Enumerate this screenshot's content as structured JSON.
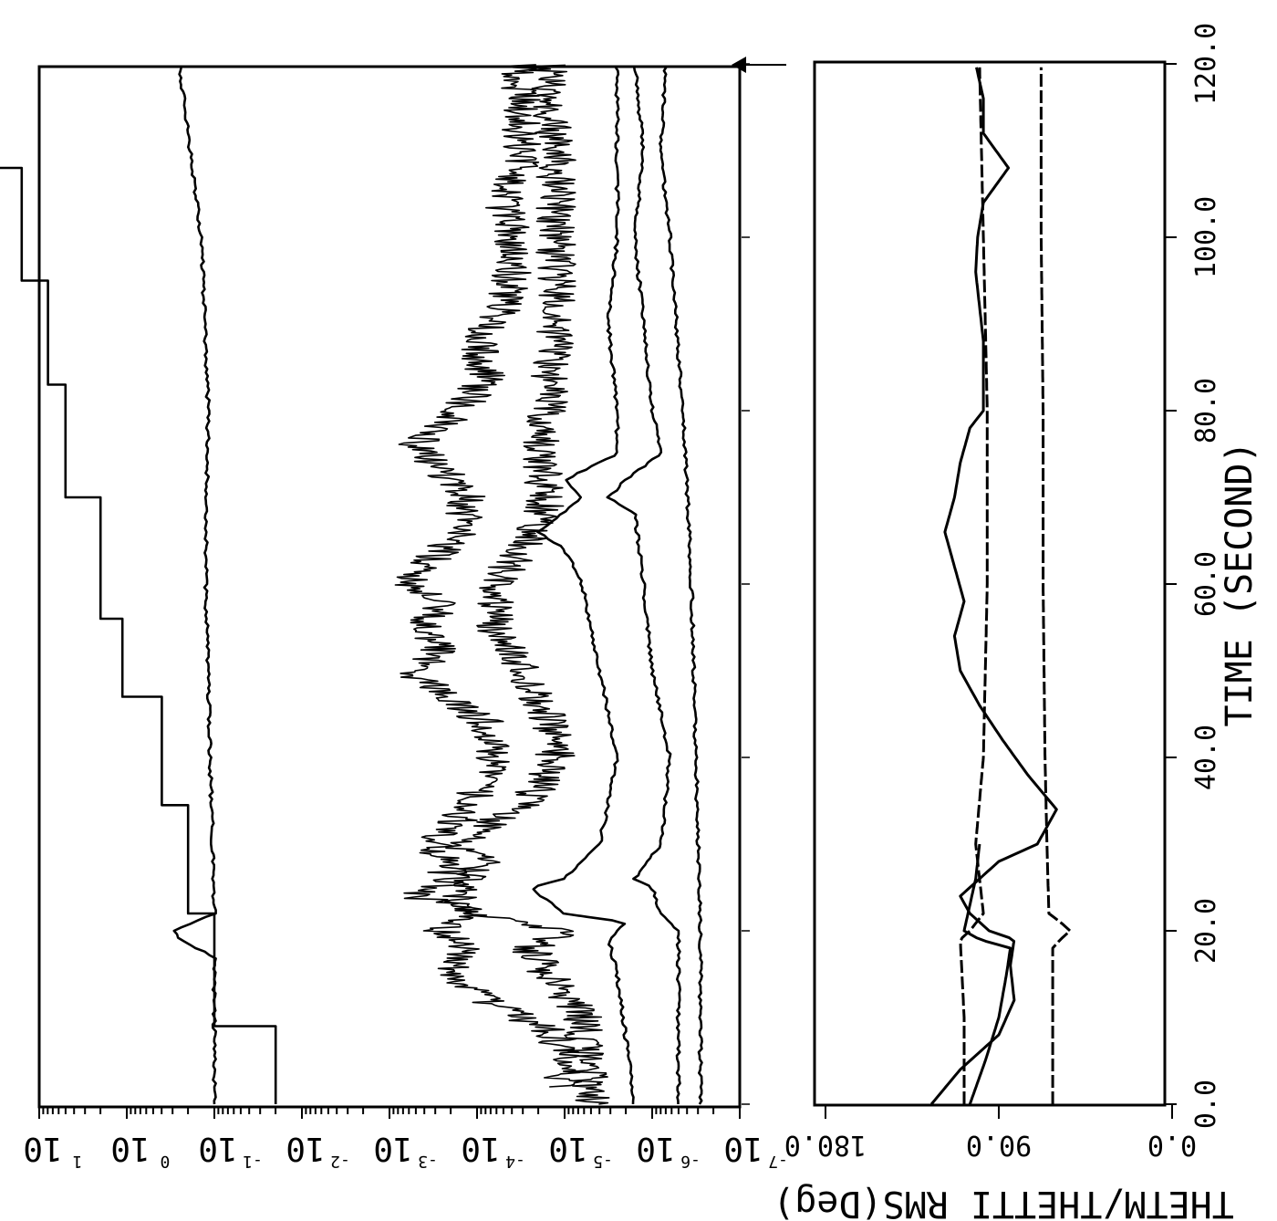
{
  "chart_data": {
    "type": "line",
    "time_axis": {
      "label": "TIME (SECOND)",
      "ticks": [
        "0.0",
        "20.0",
        "40.0",
        "60.0",
        "80.0",
        "100.0",
        "120.0"
      ],
      "range": [
        0,
        120
      ]
    },
    "left_panel": {
      "value_axis": {
        "scale": "log",
        "tick_labels": [
          {
            "base": "10",
            "exp": "1"
          },
          {
            "base": "10",
            "exp": "0"
          },
          {
            "base": "10",
            "exp": "-1"
          },
          {
            "base": "10",
            "exp": "-2"
          },
          {
            "base": "10",
            "exp": "-3"
          },
          {
            "base": "10",
            "exp": "-4"
          },
          {
            "base": "10",
            "exp": "-5"
          },
          {
            "base": "10",
            "exp": "-6"
          },
          {
            "base": "10",
            "exp": "-7"
          }
        ],
        "range_log10": [
          -7,
          1
        ]
      },
      "series": [
        {
          "style": "step",
          "x": [
            0,
            9,
            9,
            22,
            22,
            34.5,
            34.5,
            47,
            47,
            56,
            56,
            70,
            70,
            83,
            83,
            95,
            95,
            108,
            108,
            120
          ],
          "y_log10": [
            -1.7,
            -1.7,
            -1.0,
            -1.0,
            -0.7,
            -0.7,
            -0.4,
            -0.4,
            0.05,
            0.05,
            0.3,
            0.3,
            0.7,
            0.7,
            0.9,
            0.9,
            1.2,
            1.2,
            1.5,
            1.5
          ]
        },
        {
          "style": "line",
          "x": [
            0,
            10,
            17,
            19,
            20,
            21,
            22,
            30,
            40,
            60,
            80,
            100,
            120
          ],
          "y_log10": [
            -1.0,
            -1.0,
            -1.0,
            -0.6,
            -0.55,
            -0.75,
            -1.0,
            -0.98,
            -0.95,
            -0.9,
            -0.93,
            -0.85,
            -0.6
          ]
        },
        {
          "style": "noisy",
          "x": [
            2,
            8,
            12,
            15,
            18,
            20,
            22,
            24,
            26,
            28,
            30,
            33,
            36,
            40,
            44,
            48,
            50,
            52,
            55,
            58,
            60,
            63,
            66,
            70,
            73,
            76,
            80,
            84,
            88,
            92,
            96,
            100,
            104,
            108,
            112,
            116,
            120
          ],
          "y_log10": [
            -5.0,
            -4.9,
            -4.1,
            -3.7,
            -3.8,
            -3.6,
            -4.0,
            -3.3,
            -3.7,
            -3.6,
            -3.5,
            -3.8,
            -4.0,
            -4.2,
            -4.1,
            -3.5,
            -3.2,
            -3.6,
            -3.4,
            -3.6,
            -3.2,
            -3.5,
            -3.8,
            -3.9,
            -3.6,
            -3.3,
            -3.8,
            -4.1,
            -4.0,
            -4.3,
            -4.4,
            -4.4,
            -4.3,
            -4.5,
            -4.5,
            -4.5,
            -4.5
          ]
        },
        {
          "style": "noisy",
          "x": [
            0,
            10,
            15,
            18,
            20,
            22,
            25,
            28,
            30,
            35,
            40,
            45,
            50,
            55,
            60,
            65,
            70,
            75,
            80,
            90,
            100,
            110,
            120
          ],
          "y_log10": [
            -5.3,
            -5.2,
            -4.8,
            -4.6,
            -5.0,
            -3.9,
            -3.8,
            -4.1,
            -3.8,
            -4.6,
            -4.9,
            -4.8,
            -4.5,
            -4.2,
            -4.2,
            -4.6,
            -4.8,
            -4.7,
            -4.8,
            -4.9,
            -4.9,
            -4.9,
            -4.8
          ]
        },
        {
          "style": "line",
          "x": [
            0,
            15,
            19,
            21,
            22,
            25,
            26,
            30,
            40,
            50,
            55,
            60,
            64,
            66,
            70,
            72,
            75,
            80,
            90,
            100,
            110,
            120
          ],
          "y_log10": [
            -5.8,
            -5.6,
            -5.5,
            -5.7,
            -5.0,
            -4.6,
            -5.0,
            -5.4,
            -5.6,
            -5.4,
            -5.3,
            -5.2,
            -5.0,
            -4.7,
            -5.2,
            -5.0,
            -5.6,
            -5.6,
            -5.5,
            -5.6,
            -5.6,
            -5.6
          ]
        },
        {
          "style": "line",
          "x": [
            0,
            20,
            22,
            25,
            26,
            30,
            40,
            50,
            60,
            68,
            70,
            72,
            75,
            80,
            90,
            100,
            110,
            120
          ],
          "y_log10": [
            -6.3,
            -6.3,
            -6.1,
            -6.0,
            -5.8,
            -6.1,
            -6.2,
            -6.0,
            -5.9,
            -5.8,
            -5.5,
            -5.7,
            -6.1,
            -6.0,
            -5.9,
            -5.8,
            -5.9,
            -5.8
          ]
        },
        {
          "style": "line",
          "x": [
            0,
            20,
            40,
            60,
            80,
            100,
            110,
            120
          ],
          "y_log10": [
            -6.55,
            -6.55,
            -6.5,
            -6.45,
            -6.35,
            -6.2,
            -6.1,
            -6.15
          ]
        }
      ]
    },
    "right_panel": {
      "value_axis": {
        "label": "THETM/THETTI RMS(Deg)",
        "ticks": [
          "180.0",
          "90.0",
          "0.0"
        ],
        "range": [
          0,
          180
        ]
      },
      "series": [
        {
          "style": "line",
          "x": [
            0,
            4,
            8,
            12,
            16,
            19,
            20,
            22,
            24,
            28,
            30,
            34,
            38,
            42,
            46,
            50,
            54,
            58,
            62,
            66,
            70,
            74,
            78,
            80,
            84,
            88,
            92,
            96,
            100,
            104,
            108,
            112,
            116,
            120
          ],
          "y": [
            125,
            110,
            90,
            82,
            84,
            82,
            95,
            105,
            110,
            90,
            70,
            60,
            75,
            88,
            100,
            110,
            113,
            108,
            113,
            118,
            113,
            110,
            105,
            98,
            98,
            98,
            100,
            102,
            101,
            98,
            85,
            98,
            98,
            102
          ]
        },
        {
          "style": "dashed",
          "x": [
            0,
            10,
            19,
            20,
            22,
            30,
            40,
            60,
            80,
            100,
            120
          ],
          "y": [
            108,
            108,
            110,
            105,
            98,
            102,
            98,
            96,
            96,
            98,
            100
          ]
        },
        {
          "style": "dashed",
          "x": [
            0,
            10,
            18,
            19,
            20,
            21,
            22,
            30,
            40,
            60,
            80,
            100,
            120
          ],
          "y": [
            62,
            62,
            62,
            58,
            53,
            58,
            64,
            65,
            66,
            67,
            67,
            68,
            68
          ]
        },
        {
          "style": "line",
          "x": [
            0,
            5,
            10,
            15,
            18,
            19,
            20,
            22,
            26,
            30
          ],
          "y": [
            105,
            97,
            90,
            86,
            84,
            100,
            108,
            106,
            102,
            100
          ]
        }
      ]
    }
  }
}
